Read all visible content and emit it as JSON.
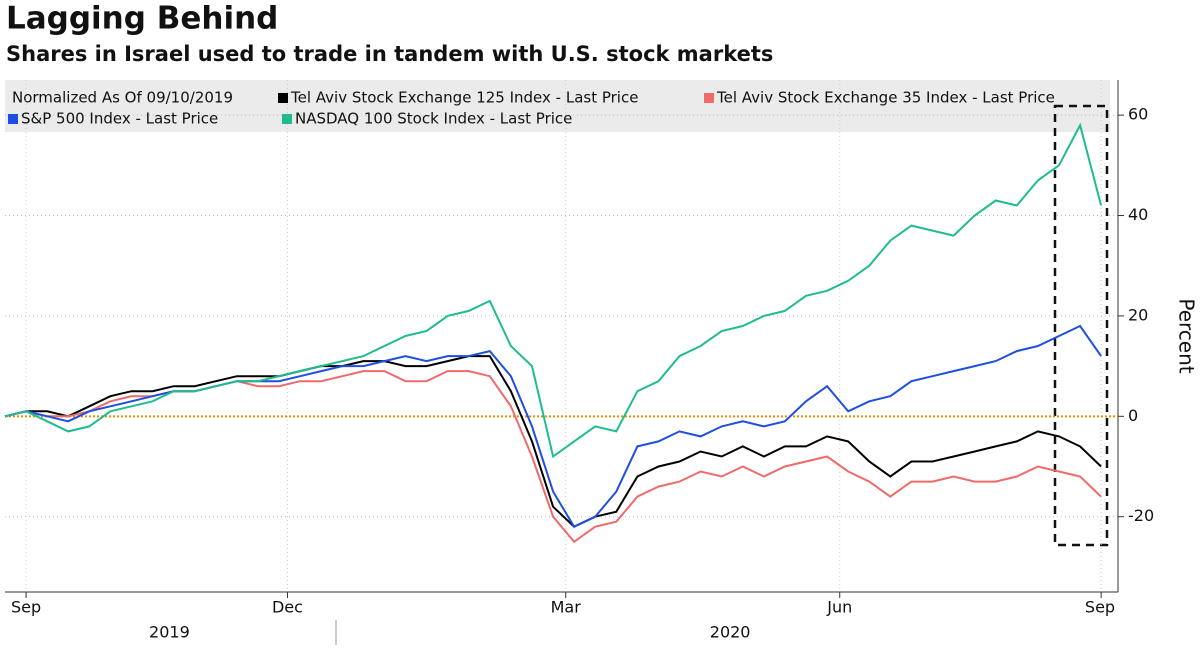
{
  "chart_data": {
    "type": "line",
    "title": "Lagging Behind",
    "subtitle": "Shares in Israel used to trade in tandem with U.S. stock markets",
    "legend_title": "Normalized As Of 09/10/2019",
    "y_label": "Percent",
    "x": [
      0,
      1,
      2,
      3,
      4,
      5,
      6,
      7,
      8,
      9,
      10,
      11,
      12,
      13,
      14,
      15,
      16,
      17,
      18,
      19,
      20,
      21,
      22,
      23,
      24,
      25,
      26,
      27,
      28,
      29,
      30,
      31,
      32,
      33,
      34,
      35,
      36,
      37,
      38,
      39,
      40,
      41,
      42,
      43,
      44,
      45,
      46,
      47,
      48,
      49,
      50,
      51,
      52
    ],
    "xlim": [
      0,
      52.8
    ],
    "xticks": [
      {
        "value": 1,
        "label": "Sep"
      },
      {
        "value": 13.4,
        "label": "Dec"
      },
      {
        "value": 26.6,
        "label": "Mar"
      },
      {
        "value": 39.6,
        "label": "Jun"
      },
      {
        "value": 52,
        "label": "Sep"
      }
    ],
    "year_ticks": [
      {
        "value": 7.8,
        "label": "2019"
      },
      {
        "value": 34.4,
        "label": "2020"
      }
    ],
    "ylim": [
      -35,
      67
    ],
    "yticks": [
      -20,
      0,
      20,
      40,
      60
    ],
    "grid": true,
    "series": [
      {
        "name": "Tel Aviv Stock Exchange 125 Index - Last Price",
        "color": "#000000",
        "values": [
          0,
          1,
          1,
          0,
          2,
          4,
          5,
          5,
          6,
          6,
          7,
          8,
          8,
          8,
          9,
          10,
          10,
          11,
          11,
          10,
          10,
          11,
          12,
          12,
          5,
          -5,
          -18,
          -22,
          -20,
          -19,
          -12,
          -10,
          -9,
          -7,
          -8,
          -6,
          -8,
          -6,
          -6,
          -4,
          -5,
          -9,
          -12,
          -9,
          -9,
          -8,
          -7,
          -6,
          -5,
          -3,
          -4,
          -6,
          -10
        ]
      },
      {
        "name": "Tel Aviv Stock Exchange 35 Index - Last Price",
        "color": "#f06a6a",
        "values": [
          0,
          1,
          0,
          0,
          1,
          3,
          4,
          4,
          5,
          5,
          6,
          7,
          6,
          6,
          7,
          7,
          8,
          9,
          9,
          7,
          7,
          9,
          9,
          8,
          2,
          -8,
          -20,
          -25,
          -22,
          -21,
          -16,
          -14,
          -13,
          -11,
          -12,
          -10,
          -12,
          -10,
          -9,
          -8,
          -11,
          -13,
          -16,
          -13,
          -13,
          -12,
          -13,
          -13,
          -12,
          -10,
          -11,
          -12,
          -16
        ]
      },
      {
        "name": "S&P 500 Index - Last Price",
        "color": "#1f4fe0",
        "values": [
          0,
          1,
          0,
          -1,
          1,
          2,
          3,
          4,
          5,
          5,
          6,
          7,
          7,
          7,
          8,
          9,
          10,
          10,
          11,
          12,
          11,
          12,
          12,
          13,
          8,
          -2,
          -15,
          -22,
          -20,
          -15,
          -6,
          -5,
          -3,
          -4,
          -2,
          -1,
          -2,
          -1,
          3,
          6,
          1,
          3,
          4,
          7,
          8,
          9,
          10,
          11,
          13,
          14,
          16,
          18,
          12
        ]
      },
      {
        "name": "NASDAQ 100 Stock Index - Last Price",
        "color": "#1fbc8f",
        "values": [
          0,
          1,
          -1,
          -3,
          -2,
          1,
          2,
          3,
          5,
          5,
          6,
          7,
          7,
          8,
          9,
          10,
          11,
          12,
          14,
          16,
          17,
          20,
          21,
          23,
          14,
          10,
          -8,
          -5,
          -2,
          -3,
          5,
          7,
          12,
          14,
          17,
          18,
          20,
          21,
          24,
          25,
          27,
          30,
          35,
          38,
          37,
          36,
          40,
          43,
          42,
          47,
          50,
          58,
          42
        ]
      }
    ]
  }
}
